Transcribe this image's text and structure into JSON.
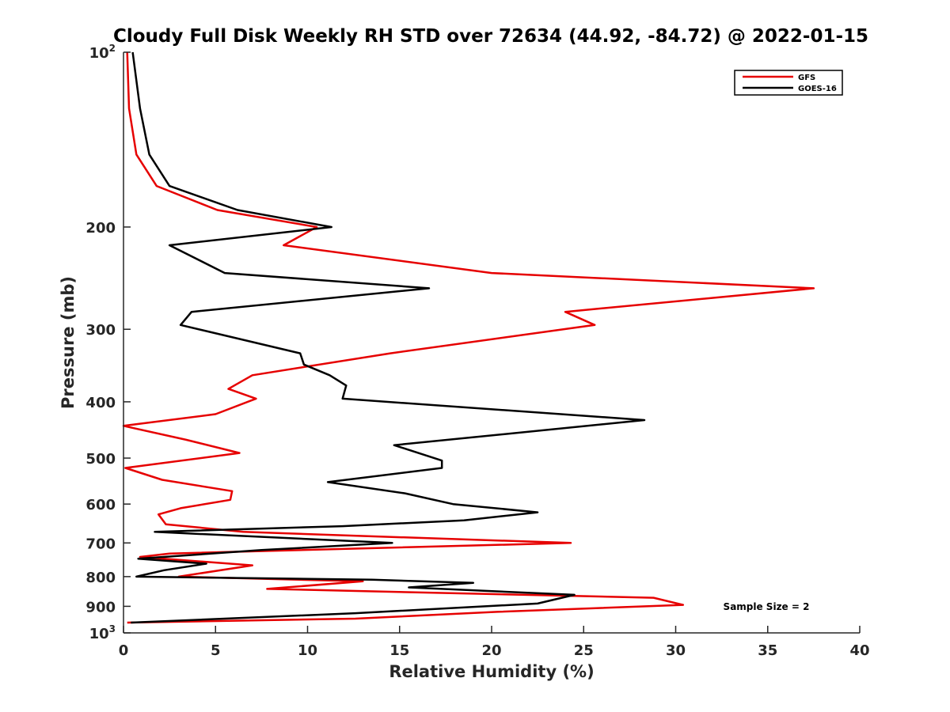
{
  "chart_data": {
    "type": "line",
    "title": "Cloudy Full Disk Weekly RH STD over 72634 (44.92, -84.72) @ 2022-01-15",
    "xlabel": "Relative Humidity (%)",
    "ylabel": "Pressure (mb)",
    "xlim": [
      0,
      40
    ],
    "ylim": [
      100,
      1000
    ],
    "y_scale": "log",
    "y_reversed": true,
    "x_ticks": [
      "0",
      "5",
      "10",
      "15",
      "20",
      "25",
      "30",
      "35",
      "40"
    ],
    "y_ticks": [
      {
        "value": 100,
        "label": "10",
        "sup": "2"
      },
      {
        "value": 200,
        "label": "200",
        "sup": ""
      },
      {
        "value": 300,
        "label": "300",
        "sup": ""
      },
      {
        "value": 400,
        "label": "400",
        "sup": ""
      },
      {
        "value": 500,
        "label": "500",
        "sup": ""
      },
      {
        "value": 600,
        "label": "600",
        "sup": ""
      },
      {
        "value": 700,
        "label": "700",
        "sup": ""
      },
      {
        "value": 800,
        "label": "800",
        "sup": ""
      },
      {
        "value": 900,
        "label": "900",
        "sup": ""
      },
      {
        "value": 1000,
        "label": "10",
        "sup": "3"
      }
    ],
    "grid": false,
    "legend_position": "top-right",
    "annotation": "Sample Size = 2",
    "series": [
      {
        "name": "GFS",
        "color": "#e60000",
        "points": [
          [
            0.2,
            100
          ],
          [
            0.3,
            125
          ],
          [
            0.7,
            150
          ],
          [
            1.8,
            170
          ],
          [
            5.1,
            187
          ],
          [
            10.5,
            200
          ],
          [
            8.7,
            215
          ],
          [
            20.0,
            240
          ],
          [
            37.5,
            255
          ],
          [
            24.0,
            280
          ],
          [
            25.6,
            295
          ],
          [
            14.5,
            330
          ],
          [
            7.0,
            360
          ],
          [
            5.7,
            380
          ],
          [
            7.2,
            395
          ],
          [
            5.0,
            420
          ],
          [
            0,
            440
          ],
          [
            3.4,
            465
          ],
          [
            6.3,
            490
          ],
          [
            0.1,
            520
          ],
          [
            2.1,
            545
          ],
          [
            5.9,
            570
          ],
          [
            5.8,
            590
          ],
          [
            3.1,
            610
          ],
          [
            1.9,
            625
          ],
          [
            2.3,
            650
          ],
          [
            6.5,
            670
          ],
          [
            12.5,
            680
          ],
          [
            24.3,
            700
          ],
          [
            2.5,
            730
          ],
          [
            0.9,
            740
          ],
          [
            7.0,
            765
          ],
          [
            3.0,
            800
          ],
          [
            13.0,
            815
          ],
          [
            7.8,
            840
          ],
          [
            28.8,
            870
          ],
          [
            30.4,
            895
          ],
          [
            20.3,
            920
          ],
          [
            12.6,
            945
          ],
          [
            0.2,
            960
          ]
        ]
      },
      {
        "name": "GOES-16",
        "color": "#000000",
        "points": [
          [
            0.5,
            100
          ],
          [
            0.9,
            125
          ],
          [
            1.4,
            150
          ],
          [
            2.5,
            170
          ],
          [
            6.2,
            187
          ],
          [
            11.3,
            200
          ],
          [
            2.5,
            215
          ],
          [
            5.5,
            240
          ],
          [
            16.6,
            255
          ],
          [
            3.7,
            280
          ],
          [
            3.1,
            295
          ],
          [
            9.6,
            330
          ],
          [
            9.8,
            345
          ],
          [
            11.2,
            360
          ],
          [
            12.1,
            375
          ],
          [
            11.9,
            395
          ],
          [
            28.3,
            430
          ],
          [
            14.7,
            475
          ],
          [
            17.3,
            505
          ],
          [
            17.3,
            520
          ],
          [
            11.1,
            550
          ],
          [
            15.3,
            575
          ],
          [
            17.9,
            600
          ],
          [
            22.5,
            620
          ],
          [
            18.5,
            640
          ],
          [
            11.9,
            655
          ],
          [
            1.7,
            670
          ],
          [
            14.6,
            700
          ],
          [
            7.5,
            720
          ],
          [
            0.8,
            745
          ],
          [
            4.5,
            760
          ],
          [
            2.2,
            780
          ],
          [
            0.7,
            800
          ],
          [
            13.5,
            810
          ],
          [
            19.0,
            820
          ],
          [
            15.5,
            835
          ],
          [
            24.5,
            860
          ],
          [
            22.5,
            890
          ],
          [
            12.6,
            925
          ],
          [
            0.4,
            960
          ]
        ]
      }
    ]
  }
}
